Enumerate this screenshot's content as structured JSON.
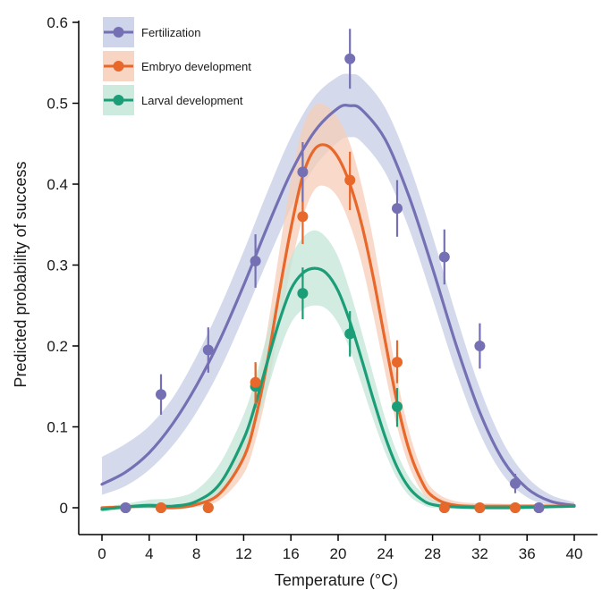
{
  "chart_data": {
    "type": "line",
    "xlabel": "Temperature (°C)",
    "ylabel": "Predicted probability of success",
    "xlim": [
      0,
      40
    ],
    "ylim": [
      0,
      0.6
    ],
    "xticks": [
      0,
      4,
      8,
      12,
      16,
      20,
      24,
      28,
      32,
      36,
      40
    ],
    "yticks": [
      0,
      0.1,
      0.2,
      0.3,
      0.4,
      0.5,
      0.6
    ],
    "ytick_labels": [
      "0",
      "0.1",
      "0.2",
      "0.3",
      "0.4",
      "0.5",
      "0.6"
    ],
    "grid": false,
    "legend_position": "top-left",
    "series": [
      {
        "name": "Fertilization",
        "color": "#7570b3",
        "band_color": "#c5cde6",
        "curve": {
          "x": [
            0,
            2,
            4,
            6,
            8,
            10,
            12,
            14,
            16,
            18,
            20,
            21,
            22,
            24,
            26,
            28,
            30,
            32,
            34,
            36,
            38,
            40
          ],
          "y": [
            0.029,
            0.044,
            0.068,
            0.104,
            0.151,
            0.208,
            0.275,
            0.347,
            0.414,
            0.465,
            0.494,
            0.497,
            0.492,
            0.455,
            0.385,
            0.296,
            0.201,
            0.118,
            0.058,
            0.024,
            0.008,
            0.003
          ],
          "lower": [
            0.016,
            0.027,
            0.047,
            0.077,
            0.118,
            0.171,
            0.236,
            0.305,
            0.37,
            0.421,
            0.452,
            0.458,
            0.452,
            0.414,
            0.345,
            0.258,
            0.168,
            0.092,
            0.04,
            0.013,
            0.003,
            0.0
          ],
          "upper": [
            0.063,
            0.079,
            0.101,
            0.136,
            0.187,
            0.248,
            0.317,
            0.39,
            0.458,
            0.508,
            0.533,
            0.536,
            0.531,
            0.494,
            0.425,
            0.336,
            0.238,
            0.148,
            0.08,
            0.038,
            0.016,
            0.007
          ]
        },
        "points": [
          {
            "x": 2,
            "y": 0.0,
            "lo": 0.0,
            "hi": 0.0
          },
          {
            "x": 5,
            "y": 0.14,
            "lo": 0.115,
            "hi": 0.165
          },
          {
            "x": 9,
            "y": 0.195,
            "lo": 0.167,
            "hi": 0.223
          },
          {
            "x": 13,
            "y": 0.305,
            "lo": 0.272,
            "hi": 0.338
          },
          {
            "x": 17,
            "y": 0.415,
            "lo": 0.378,
            "hi": 0.452
          },
          {
            "x": 21,
            "y": 0.555,
            "lo": 0.518,
            "hi": 0.592
          },
          {
            "x": 25,
            "y": 0.37,
            "lo": 0.335,
            "hi": 0.405
          },
          {
            "x": 29,
            "y": 0.31,
            "lo": 0.276,
            "hi": 0.344
          },
          {
            "x": 32,
            "y": 0.2,
            "lo": 0.172,
            "hi": 0.228
          },
          {
            "x": 35,
            "y": 0.03,
            "lo": 0.018,
            "hi": 0.042
          },
          {
            "x": 37,
            "y": 0.0,
            "lo": 0.0,
            "hi": 0.0
          }
        ]
      },
      {
        "name": "Embryo development",
        "color": "#e8672a",
        "band_color": "#f7cdb8",
        "curve": {
          "x": [
            0,
            4,
            6,
            8,
            10,
            12,
            13,
            14,
            15,
            16,
            17,
            18,
            19,
            20,
            21,
            22,
            23,
            24,
            25,
            26,
            27,
            28,
            30,
            34,
            40
          ],
          "y": [
            0.0,
            0.002,
            0.0,
            0.004,
            0.018,
            0.062,
            0.11,
            0.18,
            0.265,
            0.345,
            0.41,
            0.443,
            0.448,
            0.433,
            0.4,
            0.35,
            0.283,
            0.205,
            0.13,
            0.072,
            0.035,
            0.014,
            0.003,
            0.002,
            0.002
          ],
          "lower": [
            0.0,
            0.0,
            0.0,
            0.001,
            0.01,
            0.042,
            0.083,
            0.145,
            0.222,
            0.297,
            0.358,
            0.393,
            0.397,
            0.383,
            0.35,
            0.302,
            0.237,
            0.166,
            0.1,
            0.052,
            0.022,
            0.007,
            0.0,
            0.0,
            0.0
          ],
          "upper": [
            0.002,
            0.005,
            0.003,
            0.01,
            0.032,
            0.089,
            0.142,
            0.22,
            0.315,
            0.405,
            0.47,
            0.497,
            0.497,
            0.481,
            0.45,
            0.398,
            0.329,
            0.245,
            0.16,
            0.095,
            0.05,
            0.023,
            0.008,
            0.005,
            0.004
          ]
        },
        "points": [
          {
            "x": 2,
            "y": 0.0,
            "lo": 0.0,
            "hi": 0.0
          },
          {
            "x": 5,
            "y": 0.0,
            "lo": 0.0,
            "hi": 0.0
          },
          {
            "x": 9,
            "y": 0.0,
            "lo": 0.0,
            "hi": 0.0
          },
          {
            "x": 13,
            "y": 0.155,
            "lo": 0.128,
            "hi": 0.18
          },
          {
            "x": 17,
            "y": 0.36,
            "lo": 0.326,
            "hi": 0.394
          },
          {
            "x": 21,
            "y": 0.405,
            "lo": 0.368,
            "hi": 0.44
          },
          {
            "x": 25,
            "y": 0.18,
            "lo": 0.154,
            "hi": 0.207
          },
          {
            "x": 29,
            "y": 0.0,
            "lo": 0.0,
            "hi": 0.0
          },
          {
            "x": 32,
            "y": 0.0,
            "lo": 0.0,
            "hi": 0.0
          },
          {
            "x": 35,
            "y": 0.0,
            "lo": 0.0,
            "hi": 0.0
          },
          {
            "x": 37,
            "y": 0.0,
            "lo": 0.0,
            "hi": 0.0
          }
        ]
      },
      {
        "name": "Larval development",
        "color": "#1b9e77",
        "band_color": "#c3e6d8",
        "curve": {
          "x": [
            0,
            2,
            4,
            6,
            8,
            10,
            12,
            13,
            14,
            15,
            16,
            17,
            18,
            19,
            20,
            21,
            22,
            23,
            24,
            25,
            26,
            27,
            28,
            30,
            34,
            40
          ],
          "y": [
            -0.002,
            0.001,
            0.003,
            0.002,
            0.008,
            0.03,
            0.085,
            0.128,
            0.18,
            0.23,
            0.27,
            0.29,
            0.296,
            0.29,
            0.268,
            0.23,
            0.183,
            0.133,
            0.087,
            0.05,
            0.025,
            0.011,
            0.004,
            0.001,
            0.0,
            0.002
          ],
          "lower": [
            -0.005,
            -0.002,
            -0.001,
            -0.002,
            0.002,
            0.018,
            0.062,
            0.1,
            0.145,
            0.192,
            0.228,
            0.245,
            0.25,
            0.246,
            0.228,
            0.195,
            0.152,
            0.108,
            0.068,
            0.036,
            0.015,
            0.005,
            0.0,
            0.0,
            0.0,
            0.0
          ],
          "upper": [
            0.001,
            0.005,
            0.01,
            0.012,
            0.022,
            0.055,
            0.115,
            0.16,
            0.215,
            0.268,
            0.31,
            0.334,
            0.343,
            0.334,
            0.31,
            0.268,
            0.217,
            0.163,
            0.11,
            0.068,
            0.038,
            0.02,
            0.01,
            0.005,
            0.002,
            0.004
          ]
        },
        "points": [
          {
            "x": 2,
            "y": 0.0,
            "lo": 0.0,
            "hi": 0.0
          },
          {
            "x": 5,
            "y": 0.0,
            "lo": 0.0,
            "hi": 0.0
          },
          {
            "x": 9,
            "y": 0.0,
            "lo": 0.0,
            "hi": 0.0
          },
          {
            "x": 13,
            "y": 0.15,
            "lo": 0.124,
            "hi": 0.178
          },
          {
            "x": 17,
            "y": 0.265,
            "lo": 0.233,
            "hi": 0.297
          },
          {
            "x": 21,
            "y": 0.215,
            "lo": 0.187,
            "hi": 0.243
          },
          {
            "x": 25,
            "y": 0.125,
            "lo": 0.1,
            "hi": 0.148
          },
          {
            "x": 29,
            "y": 0.0,
            "lo": 0.0,
            "hi": 0.0
          },
          {
            "x": 32,
            "y": 0.0,
            "lo": 0.0,
            "hi": 0.0
          },
          {
            "x": 35,
            "y": 0.0,
            "lo": 0.0,
            "hi": 0.0
          },
          {
            "x": 37,
            "y": 0.0,
            "lo": 0.0,
            "hi": 0.0
          }
        ]
      }
    ]
  }
}
